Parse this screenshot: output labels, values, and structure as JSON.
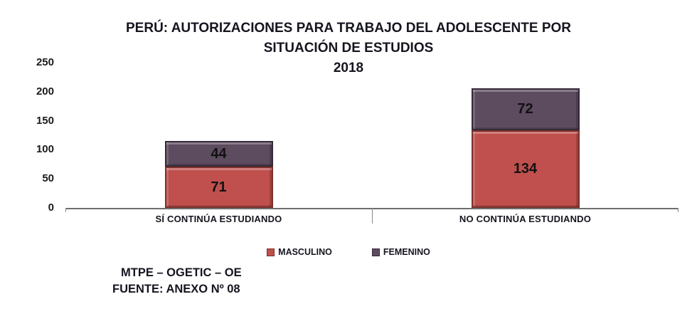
{
  "title": {
    "line1": "PERÚ: AUTORIZACIONES PARA TRABAJO DEL ADOLESCENTE POR",
    "line2": "SITUACIÓN DE ESTUDIOS",
    "line3": "2018"
  },
  "chart_data": {
    "type": "bar",
    "stacked": true,
    "title": "PERÚ: AUTORIZACIONES PARA TRABAJO DEL ADOLESCENTE POR SITUACIÓN DE ESTUDIOS 2018",
    "categories": [
      "SÍ CONTINÚA ESTUDIANDO",
      "NO CONTINÚA ESTUDIANDO"
    ],
    "series": [
      {
        "name": "MASCULINO",
        "values": [
          71,
          134
        ],
        "color": "#c0504d",
        "border": "#7c2f2b"
      },
      {
        "name": "FEMENINO",
        "values": [
          44,
          72
        ],
        "color": "#5d4b5f",
        "border": "#342a38"
      }
    ],
    "totals": [
      115,
      206
    ],
    "xlabel": "",
    "ylabel": "",
    "ylim": [
      0,
      250
    ],
    "yticks": [
      0,
      50,
      100,
      150,
      200,
      250
    ],
    "grid": false,
    "legend_position": "bottom"
  },
  "footer": {
    "line1": "MTPE – OGETIC – OE",
    "line2": "FUENTE: ANEXO Nº 08"
  }
}
